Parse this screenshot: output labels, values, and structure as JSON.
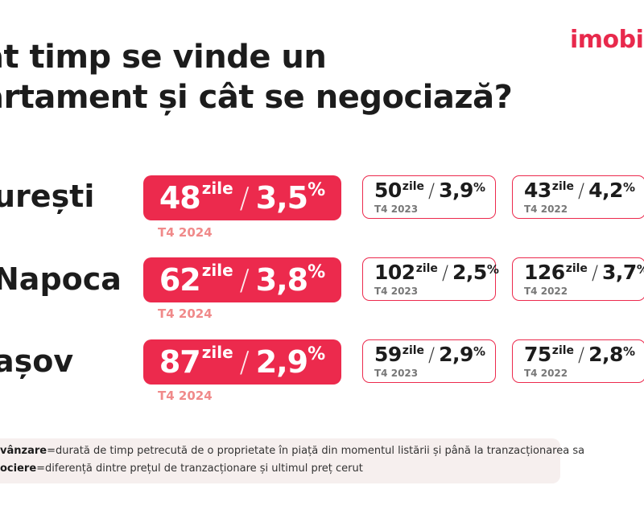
{
  "title": {
    "line1": "ât timp se vinde un",
    "line2": "artament și cât se negociază?"
  },
  "logo": "imobi",
  "colors": {
    "accent": "#ec2a4d",
    "main_year": "#f08a8a",
    "legend_bg": "#f6efee"
  },
  "rows": [
    {
      "city": "urești",
      "current": {
        "days": "48",
        "unit": "zile",
        "pct": "3,5",
        "pct_sign": "%",
        "year": "T4 2024"
      },
      "prev1": {
        "days": "50",
        "unit": "zile",
        "pct": "3,9",
        "pct_sign": "%",
        "year": "T4 2023"
      },
      "prev2": {
        "days": "43",
        "unit": "zile",
        "pct": "4,2",
        "pct_sign": "%",
        "year": "T4 2022"
      }
    },
    {
      "city": "Napoca",
      "current": {
        "days": "62",
        "unit": "zile",
        "pct": "3,8",
        "pct_sign": "%",
        "year": "T4 2024"
      },
      "prev1": {
        "days": "102",
        "unit": "zile",
        "pct": "2,5",
        "pct_sign": "%",
        "year": "T4 2023"
      },
      "prev2": {
        "days": "126",
        "unit": "zile",
        "pct": "3,7",
        "pct_sign": "%",
        "year": "T4 2022"
      }
    },
    {
      "city": "așov",
      "current": {
        "days": "87",
        "unit": "zile",
        "pct": "2,9",
        "pct_sign": "%",
        "year": "T4 2024"
      },
      "prev1": {
        "days": "59",
        "unit": "zile",
        "pct": "2,9",
        "pct_sign": "%",
        "year": "T4 2023"
      },
      "prev2": {
        "days": "75",
        "unit": "zile",
        "pct": "2,8",
        "pct_sign": "%",
        "year": "T4 2022"
      }
    }
  ],
  "legend": {
    "line1_term": "vânzare",
    "line1_def": "=durată de timp petrecută de o proprietate în piață din momentul listării și până la tranzacționarea sa",
    "line2_term": "ociere",
    "line2_def": "=diferență dintre prețul de tranzacționare și ultimul preț cerut"
  }
}
